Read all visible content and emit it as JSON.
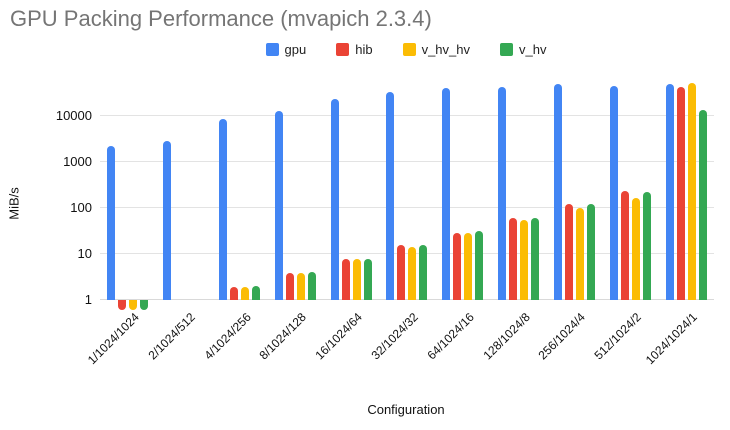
{
  "title": "GPU Packing Performance (mvapich 2.3.4)",
  "legend": {
    "position": "top",
    "items": [
      {
        "label": "gpu",
        "color": "#4285F4"
      },
      {
        "label": "hib",
        "color": "#EA4335"
      },
      {
        "label": "v_hv_hv",
        "color": "#FBBC04"
      },
      {
        "label": "v_hv",
        "color": "#34A853"
      }
    ]
  },
  "y_axis": {
    "label": "MiB/s",
    "scale": "log",
    "ticks": [
      1,
      10,
      100,
      1000,
      10000
    ]
  },
  "x_axis": {
    "label": "Configuration"
  },
  "chart_data": {
    "type": "bar",
    "title": "GPU Packing Performance (mvapich 2.3.4)",
    "xlabel": "Configuration",
    "ylabel": "MiB/s",
    "y_scale": "log",
    "ylim": [
      1,
      100000
    ],
    "baseline": 1,
    "grid": true,
    "legend_position": "top",
    "categories": [
      "1/1024/1024",
      "2/1024/512",
      "4/1024/256",
      "8/1024/128",
      "16/1024/64",
      "32/1024/32",
      "64/1024/16",
      "128/1024/8",
      "256/1024/4",
      "512/1024/2",
      "1024/1024/1"
    ],
    "series": [
      {
        "name": "gpu",
        "color": "#4285F4",
        "values": [
          2250,
          2800,
          8400,
          12800,
          23000,
          33000,
          41000,
          42000,
          49000,
          45000,
          50000
        ]
      },
      {
        "name": "hib",
        "color": "#EA4335",
        "values": [
          0.6,
          1,
          1.9,
          3.9,
          7.6,
          15.5,
          29,
          60,
          120,
          230,
          42000
        ]
      },
      {
        "name": "v_hv_hv",
        "color": "#FBBC04",
        "values": [
          0.6,
          1,
          1.9,
          3.9,
          7.6,
          14.5,
          29,
          55,
          100,
          165,
          52000
        ]
      },
      {
        "name": "v_hv",
        "color": "#34A853",
        "values": [
          0.6,
          1,
          2.0,
          4.0,
          7.8,
          15.5,
          31,
          62,
          125,
          220,
          13200
        ]
      }
    ]
  }
}
